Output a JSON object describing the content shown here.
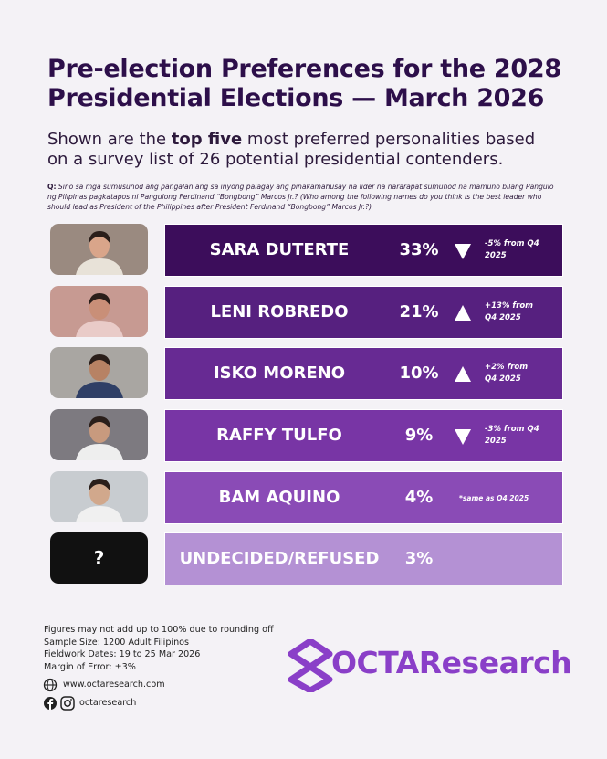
{
  "header": {
    "title_lines": [
      "Pre-election Preferences for the 2028",
      "Presidential Elections — March 2026"
    ],
    "subtitle": {
      "before": "Shown are the ",
      "bold": "top five",
      "after": " most preferred personalities based on a survey list of 26 potential presidential contenders."
    },
    "question": {
      "label": "Q:",
      "text": "Sino sa mga sumusunod ang pangalan ang sa inyong palagay ang pinakamahusay na lider na nararapat sumunod na mamuno bilang Pangulo ng Pilipinas pagkatapos ni Pangulong Ferdinand “Bongbong” Marcos Jr.? (Who among the following names do you think is the best leader who should lead as President of the Philippines after President Ferdinand “Bongbong” Marcos Jr.?)"
    }
  },
  "rows": [
    {
      "name": "SARA DUTERTE",
      "percent": "33%",
      "direction": "down",
      "change": "-5% from Q4 2025"
    },
    {
      "name": "LENI ROBREDO",
      "percent": "21%",
      "direction": "up",
      "change": "+13% from Q4 2025"
    },
    {
      "name": "ISKO MORENO",
      "percent": "10%",
      "direction": "up",
      "change": "+2% from Q4 2025"
    },
    {
      "name": "RAFFY TULFO",
      "percent": "9%",
      "direction": "down",
      "change": "-3% from Q4 2025"
    },
    {
      "name": "BAM AQUINO",
      "percent": "4%",
      "change": "*same as Q4 2025"
    },
    {
      "name": "UNDECIDED/REFUSED",
      "percent": "3%",
      "photo_text": "?"
    }
  ],
  "footer": {
    "notes": [
      "Figures may not add up to 100% due to rounding off",
      "Sample Size: 1200 Adult Filipinos",
      "Fieldwork Dates: 19 to 25 Mar 2026",
      "Margin of Error: ±3%"
    ],
    "website": "www.octaresearch.com",
    "social": "octaresearch",
    "logo": "OCTAResearch"
  }
}
